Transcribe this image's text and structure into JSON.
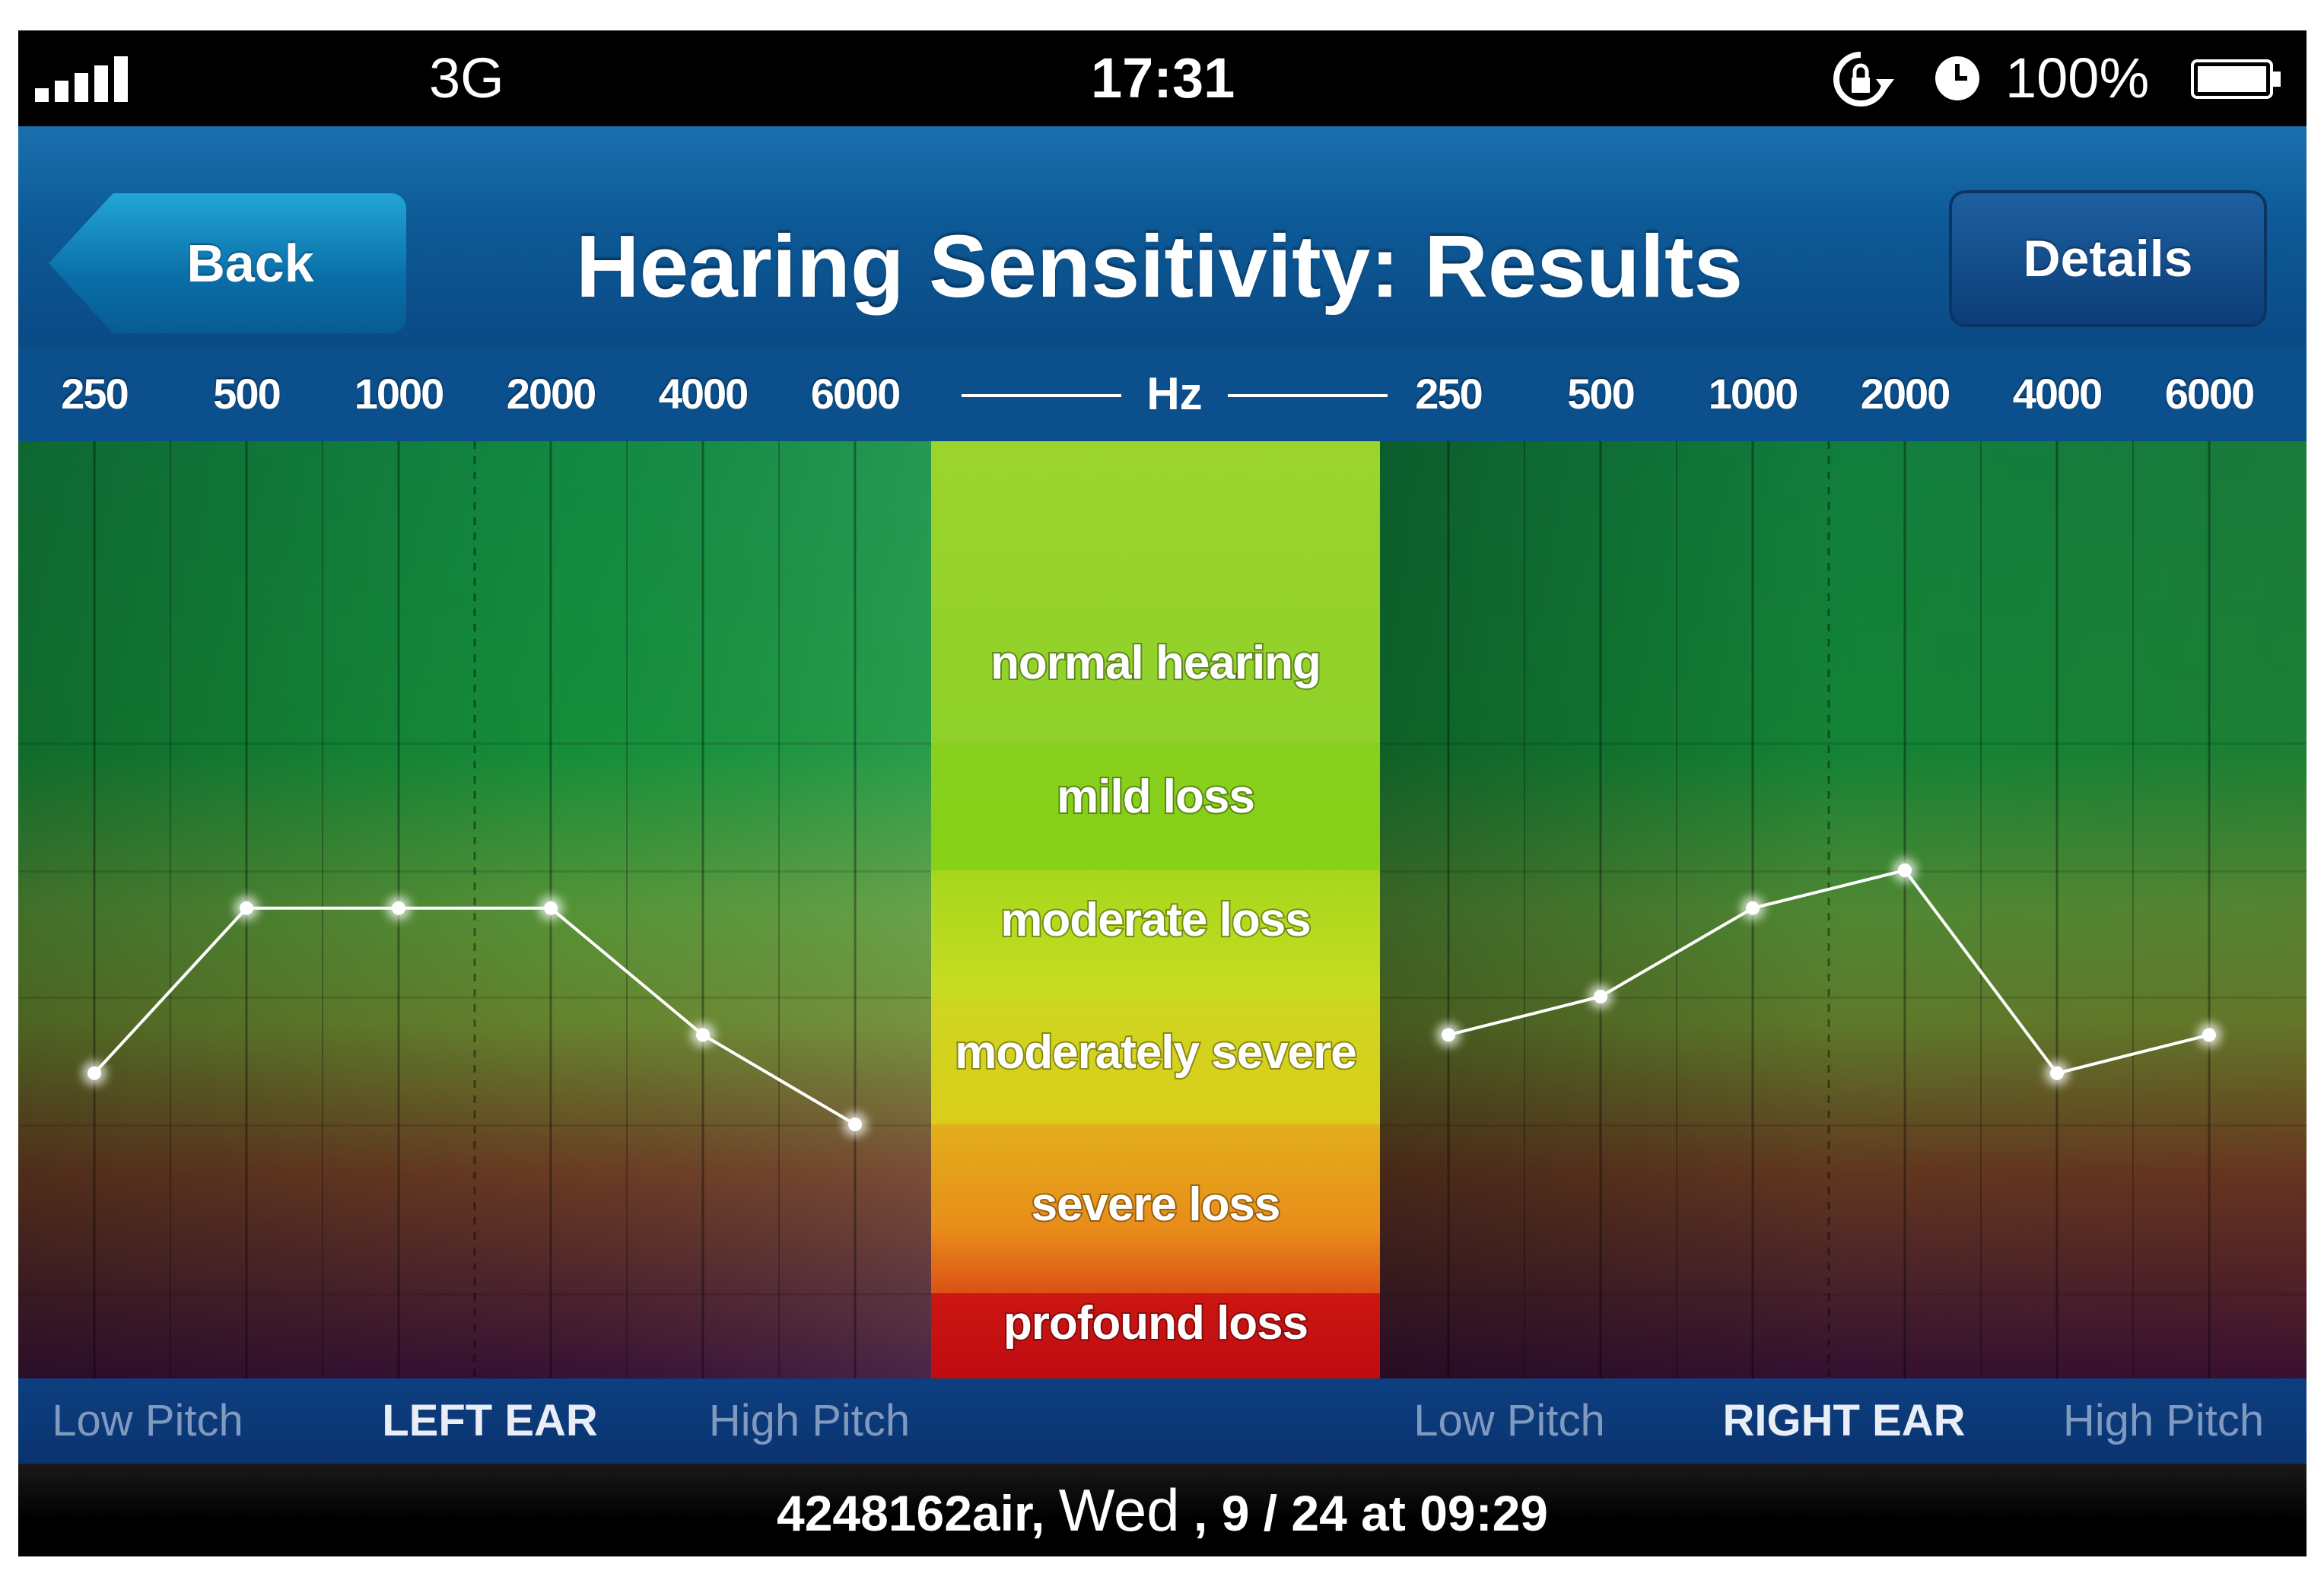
{
  "status_bar": {
    "network": "3G",
    "time": "17:31",
    "battery_percent": "100%",
    "signal_bars": 5,
    "icons": [
      "signal-icon",
      "rotation-lock-icon",
      "alarm-icon",
      "battery-icon"
    ]
  },
  "nav": {
    "back_label": "Back",
    "title": "Hearing Sensitivity: Results",
    "details_label": "Details"
  },
  "frequency_axis": {
    "unit": "Hz",
    "left_ticks": [
      "250",
      "500",
      "1000",
      "2000",
      "4000",
      "6000"
    ],
    "right_ticks": [
      "250",
      "500",
      "1000",
      "2000",
      "4000",
      "6000"
    ]
  },
  "hearing_bands": [
    {
      "label": "normal hearing",
      "color": "#8fd12a"
    },
    {
      "label": "mild loss",
      "color": "#7fcf10"
    },
    {
      "label": "moderate loss",
      "color": "#c4dc1e"
    },
    {
      "label": "moderately severe",
      "color": "#d6cf1a"
    },
    {
      "label": "severe loss",
      "color": "#e8901a"
    },
    {
      "label": "profound loss",
      "color": "#c80e12"
    }
  ],
  "bottom_labels": {
    "left": {
      "low": "Low Pitch",
      "ear": "LEFT EAR",
      "high": "High Pitch"
    },
    "right": {
      "low": "Low Pitch",
      "ear": "RIGHT EAR",
      "high": "High Pitch"
    }
  },
  "footer": {
    "user": "4248162air,",
    "day": "Wed",
    "date": ", 9 / 24 at 09:29"
  },
  "chart_data": {
    "type": "line",
    "x": [
      "250",
      "500",
      "1000",
      "2000",
      "4000",
      "6000"
    ],
    "xlabel": "Hz",
    "y_scale": "hearing loss band position (0 = top of chart, 6 = bottom)",
    "series": [
      {
        "name": "LEFT EAR",
        "values": [
          3.6,
          2.3,
          2.3,
          2.3,
          3.3,
          4.0
        ]
      },
      {
        "name": "RIGHT EAR",
        "values": [
          3.3,
          3.0,
          2.3,
          2.0,
          3.6,
          3.3
        ]
      }
    ]
  }
}
